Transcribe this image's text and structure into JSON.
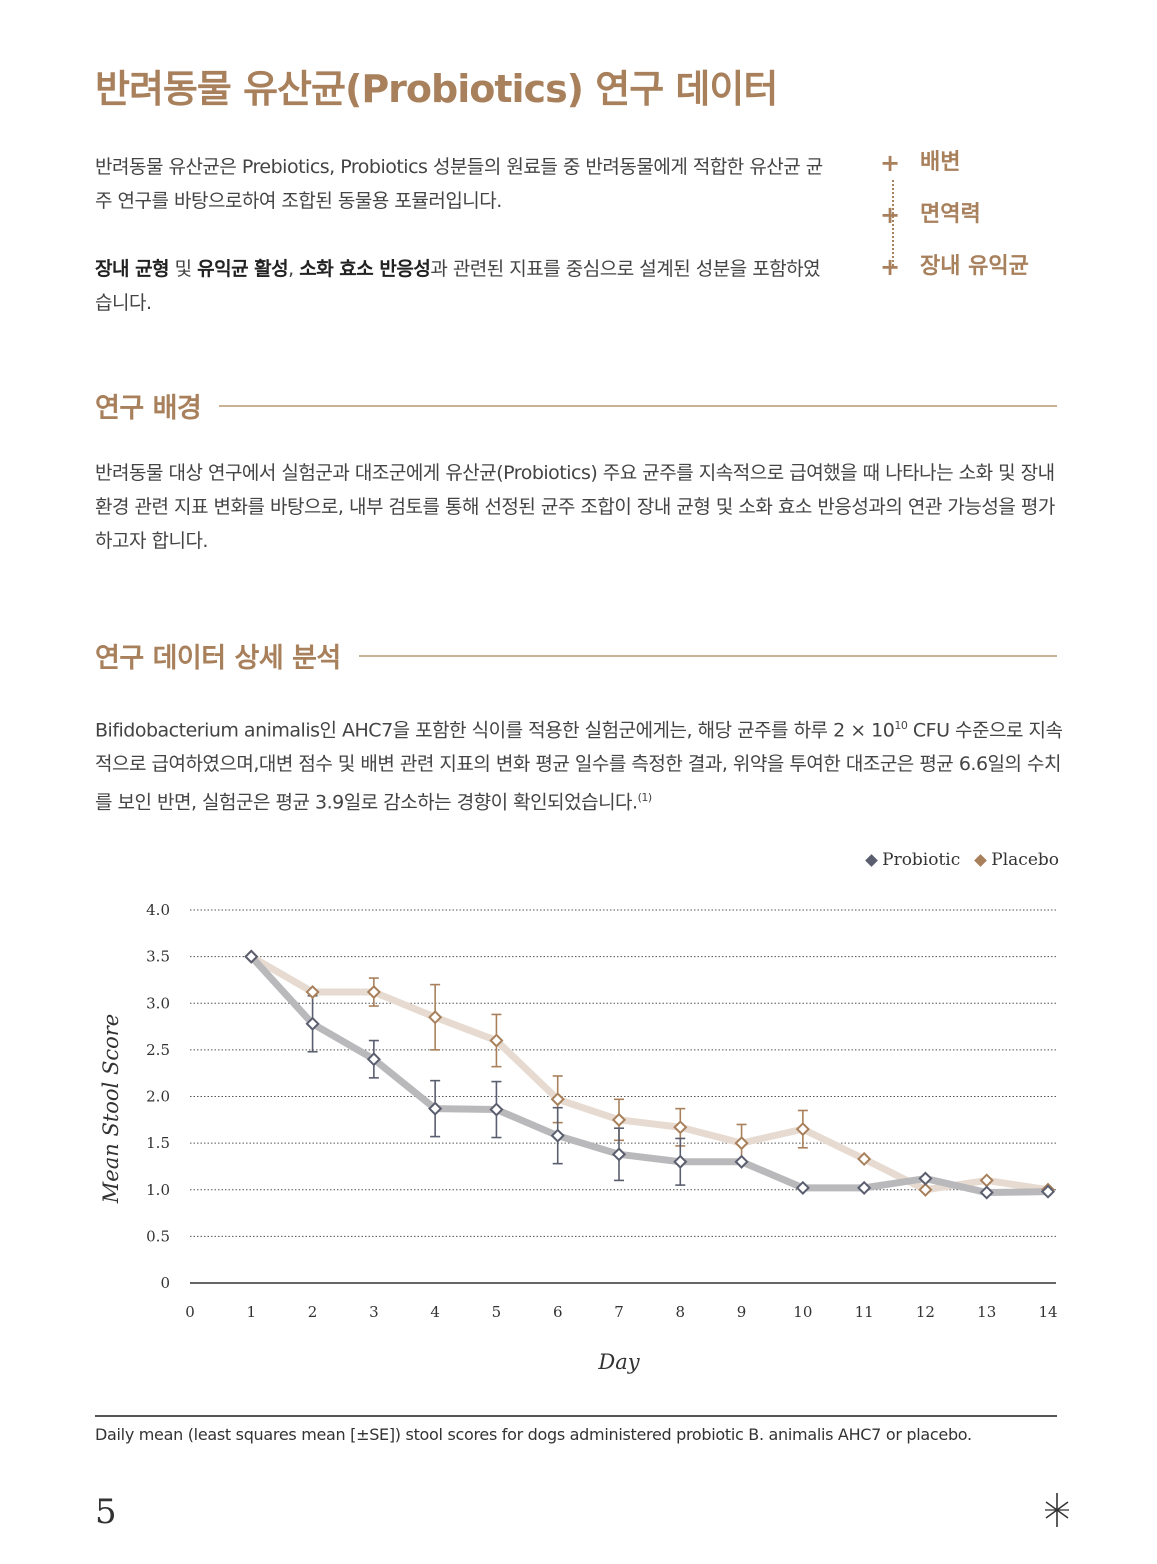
{
  "title": "반려동물 유산균(Probiotics) 연구 데이터",
  "intro": {
    "p1": "반려동물 유산균은 Prebiotics, Probiotics 성분들의 원료들 중 반려동물에게 적합한 유산균 균주 연구를 바탕으로하여 조합된 동물용 포뮬러입니다.",
    "p2_bold1": "장내 균형",
    "p2_t1": " 및 ",
    "p2_bold2": "유익균 활성",
    "p2_t2": ", ",
    "p2_bold3": "소화 효소 반응성",
    "p2_t3": "과 관련된 지표를 중심으로 설계된 성분을 포함하였습니다."
  },
  "benefits": [
    "배변",
    "면역력",
    "장내 유익균"
  ],
  "section1": {
    "title": "연구 배경",
    "text": "반려동물 대상 연구에서 실험군과 대조군에게 유산균(Probiotics) 주요 균주를 지속적으로 급여했을 때 나타나는 소화 및 장내 환경 관련 지표 변화를 바탕으로, 내부 검토를 통해 선정된 균주 조합이 장내 균형 및 소화 효소 반응성과의 연관 가능성을 평가하고자 합니다."
  },
  "section2": {
    "title": "연구 데이터 상세 분석",
    "text_a": "Bifidobacterium animalis인 AHC7을 포함한 식이를 적용한 실험군에게는, 해당 균주를 하루 2 × 10",
    "exp": "10",
    "text_b": " CFU 수준으로 지속적으로 급여하였으며,대변 점수 및 배변 관련 지표의 변화 평균 일수를 측정한 결과, 위약을 투여한 대조군은 평균 6.6일의 수치를 보인 반면, 실험군은 평균 3.9일로 감소하는 경향이 확인되었습니다.",
    "ref": "(1)"
  },
  "chart_data": {
    "type": "line",
    "xlabel": "Day",
    "ylabel": "Mean Stool Score",
    "x": [
      1,
      2,
      3,
      4,
      5,
      6,
      7,
      8,
      9,
      10,
      11,
      12,
      13,
      14
    ],
    "xticks": [
      "0",
      "1",
      "2",
      "3",
      "4",
      "5",
      "6",
      "7",
      "8",
      "9",
      "10",
      "11",
      "12",
      "13",
      "14"
    ],
    "yticks": [
      "0",
      "0.5",
      "1.0",
      "1.5",
      "2.0",
      "2.5",
      "3.0",
      "3.5",
      "4.0"
    ],
    "xlim": [
      0,
      14
    ],
    "ylim": [
      0,
      4.0
    ],
    "grid": true,
    "legend_position": "top-right",
    "series": [
      {
        "name": "Probiotic",
        "color": "#5a5e6e",
        "line_color": "#b9b9bc",
        "values": [
          3.5,
          2.78,
          2.4,
          1.87,
          1.86,
          1.58,
          1.38,
          1.3,
          1.3,
          1.02,
          1.02,
          1.12,
          0.97,
          0.98
        ],
        "err": [
          0,
          0.3,
          0.2,
          0.3,
          0.3,
          0.3,
          0.28,
          0.25,
          0,
          0,
          0,
          0,
          0,
          0
        ]
      },
      {
        "name": "Placebo",
        "color": "#a8805c",
        "line_color": "#e7dbd1",
        "values": [
          3.5,
          3.12,
          3.12,
          2.85,
          2.6,
          1.97,
          1.75,
          1.67,
          1.5,
          1.65,
          1.33,
          1.0,
          1.1,
          1.0
        ],
        "err": [
          0,
          0,
          0.15,
          0.35,
          0.28,
          0.25,
          0.22,
          0.2,
          0.2,
          0.2,
          0,
          0,
          0,
          0
        ]
      }
    ]
  },
  "caption": "Daily mean (least squares mean [±SE]) stool scores for dogs administered probiotic B. animalis AHC7 or placebo.",
  "page_number": "5"
}
